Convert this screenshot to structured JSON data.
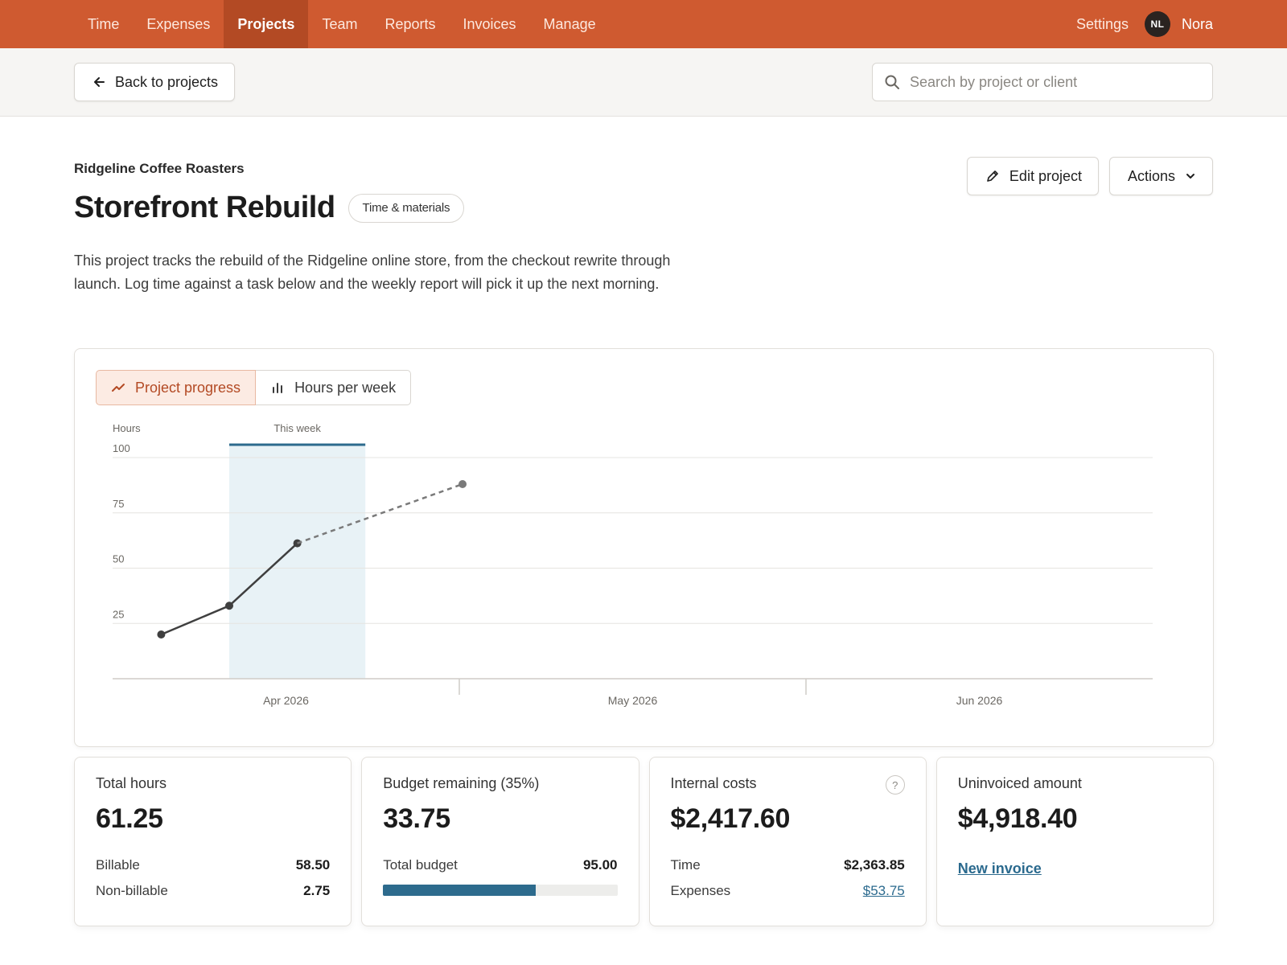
{
  "nav": {
    "items": [
      {
        "label": "Time",
        "active": false
      },
      {
        "label": "Expenses",
        "active": false
      },
      {
        "label": "Projects",
        "active": true
      },
      {
        "label": "Team",
        "active": false
      },
      {
        "label": "Reports",
        "active": false
      },
      {
        "label": "Invoices",
        "active": false
      },
      {
        "label": "Manage",
        "active": false
      }
    ],
    "settings_label": "Settings",
    "avatar_initials": "NL",
    "user_name": "Nora"
  },
  "subbar": {
    "back_label": "Back to projects",
    "search_placeholder": "Search by project or client"
  },
  "project": {
    "client": "Ridgeline Coffee Roasters",
    "title": "Storefront Rebuild",
    "billing_type": "Time & materials",
    "description": "This project tracks the rebuild of the Ridgeline online store, from the checkout rewrite through launch. Log time against a task below and the weekly report will pick it up the next morning.",
    "edit_label": "Edit project",
    "actions_label": "Actions"
  },
  "chart_tabs": [
    {
      "label": "Project progress",
      "icon": "trend-line-icon",
      "active": true
    },
    {
      "label": "Hours per week",
      "icon": "bar-chart-icon",
      "active": false
    }
  ],
  "chart_data": {
    "type": "line",
    "ylabel": "Hours",
    "yticks": [
      25,
      50,
      75,
      100
    ],
    "ylim": [
      0,
      100
    ],
    "xlim": [
      "2026-03-15",
      "2026-06-30"
    ],
    "x_months": [
      "Apr 2026",
      "May 2026",
      "Jun 2026"
    ],
    "highlight": {
      "label": "This week",
      "start": "2026-03-27",
      "end": "2026-04-10"
    },
    "series": [
      {
        "style": "solid",
        "points": [
          {
            "x": "2026-03-20",
            "y": 20
          },
          {
            "x": "2026-03-27",
            "y": 33
          },
          {
            "x": "2026-04-03",
            "y": 61.25
          }
        ]
      },
      {
        "style": "dashed",
        "points": [
          {
            "x": "2026-04-03",
            "y": 61.25
          },
          {
            "x": "2026-04-20",
            "y": 88
          }
        ]
      }
    ],
    "colors": {
      "actual": "#3f3f3f",
      "projected": "#7a7a7a",
      "highlight": "#e8f2f6",
      "highlight_border": "#2d6b8d"
    }
  },
  "stats": {
    "total_hours": {
      "label": "Total hours",
      "value": "61.25",
      "billable_label": "Billable",
      "billable": "58.50",
      "nonbillable_label": "Non-billable",
      "nonbillable": "2.75"
    },
    "budget": {
      "label": "Budget remaining (35%)",
      "value": "33.75",
      "total_label": "Total budget",
      "total": "95.00",
      "used_fraction": 0.65
    },
    "costs": {
      "label": "Internal costs",
      "value": "$2,417.60",
      "time_label": "Time",
      "time": "$2,363.85",
      "expenses_label": "Expenses",
      "expenses": "$53.75",
      "help": "?"
    },
    "uninvoiced": {
      "label": "Uninvoiced amount",
      "value": "$4,918.40",
      "action": "New invoice"
    }
  },
  "colors": {
    "brand": "#cf5a30",
    "brand_dark": "#b34a24",
    "link": "#2b6a8e"
  }
}
